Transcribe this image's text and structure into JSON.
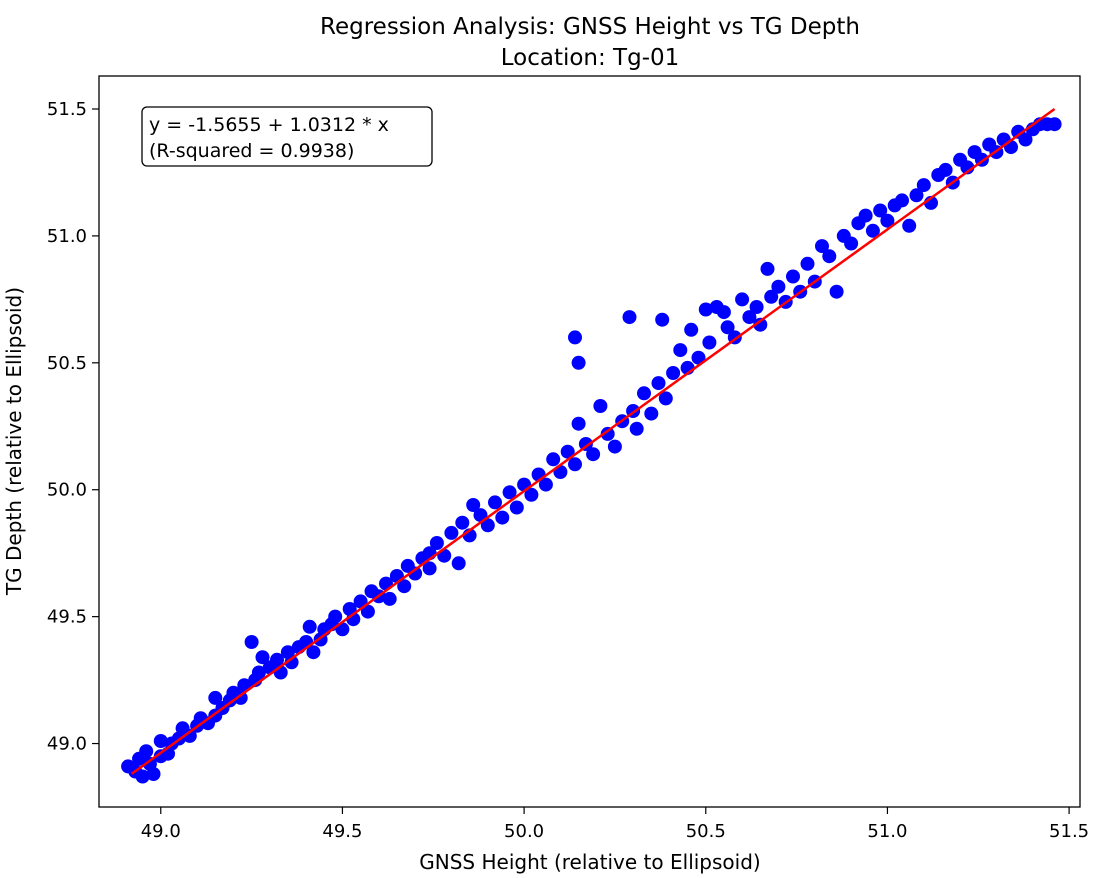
{
  "chart_data": {
    "type": "scatter",
    "title": "Regression Analysis: GNSS Height vs TG Depth",
    "subtitle": "Location: Tg-01",
    "xlabel": "GNSS Height (relative to Ellipsoid)",
    "ylabel": "TG Depth (relative to Ellipsoid)",
    "xlim": [
      48.83,
      51.53
    ],
    "ylim": [
      48.75,
      51.63
    ],
    "xticks": [
      49.0,
      49.5,
      50.0,
      50.5,
      51.0,
      51.5
    ],
    "yticks": [
      49.0,
      49.5,
      50.0,
      50.5,
      51.0,
      51.5
    ],
    "xtick_labels": [
      "49.0",
      "49.5",
      "50.0",
      "50.5",
      "51.0",
      "51.5"
    ],
    "ytick_labels": [
      "49.0",
      "49.5",
      "50.0",
      "50.5",
      "51.0",
      "51.5"
    ],
    "grid": false,
    "colors": {
      "points": "#0000ff",
      "fit_line": "#ff0000"
    },
    "annotation": {
      "line1": "y = -1.5655 + 1.0312 * x",
      "line2": "(R-squared = 0.9938)"
    },
    "fit_line": {
      "intercept": -1.5655,
      "slope": 1.0312,
      "x_start": 48.92,
      "x_end": 51.46
    },
    "series": [
      {
        "points": [
          [
            48.91,
            48.91
          ],
          [
            48.93,
            48.89
          ],
          [
            48.94,
            48.94
          ],
          [
            48.95,
            48.87
          ],
          [
            48.96,
            48.97
          ],
          [
            48.97,
            48.92
          ],
          [
            48.98,
            48.88
          ],
          [
            49.0,
            48.95
          ],
          [
            49.0,
            49.01
          ],
          [
            49.02,
            48.96
          ],
          [
            49.03,
            49.0
          ],
          [
            49.05,
            49.02
          ],
          [
            49.06,
            49.06
          ],
          [
            49.08,
            49.03
          ],
          [
            49.1,
            49.07
          ],
          [
            49.11,
            49.1
          ],
          [
            49.13,
            49.08
          ],
          [
            49.15,
            49.18
          ],
          [
            49.15,
            49.11
          ],
          [
            49.17,
            49.14
          ],
          [
            49.19,
            49.17
          ],
          [
            49.2,
            49.2
          ],
          [
            49.22,
            49.18
          ],
          [
            49.23,
            49.23
          ],
          [
            49.25,
            49.4
          ],
          [
            49.26,
            49.25
          ],
          [
            49.27,
            49.28
          ],
          [
            49.28,
            49.34
          ],
          [
            49.3,
            49.3
          ],
          [
            49.32,
            49.33
          ],
          [
            49.33,
            49.28
          ],
          [
            49.35,
            49.36
          ],
          [
            49.36,
            49.32
          ],
          [
            49.38,
            49.38
          ],
          [
            49.4,
            49.4
          ],
          [
            49.41,
            49.46
          ],
          [
            49.42,
            49.36
          ],
          [
            49.44,
            49.41
          ],
          [
            49.45,
            49.45
          ],
          [
            49.47,
            49.47
          ],
          [
            49.48,
            49.5
          ],
          [
            49.5,
            49.45
          ],
          [
            49.52,
            49.53
          ],
          [
            49.53,
            49.49
          ],
          [
            49.55,
            49.56
          ],
          [
            49.57,
            49.52
          ],
          [
            49.58,
            49.6
          ],
          [
            49.6,
            49.58
          ],
          [
            49.62,
            49.63
          ],
          [
            49.63,
            49.57
          ],
          [
            49.65,
            49.66
          ],
          [
            49.67,
            49.62
          ],
          [
            49.68,
            49.7
          ],
          [
            49.7,
            49.67
          ],
          [
            49.72,
            49.73
          ],
          [
            49.74,
            49.75
          ],
          [
            49.74,
            49.69
          ],
          [
            49.76,
            49.79
          ],
          [
            49.78,
            49.74
          ],
          [
            49.8,
            49.83
          ],
          [
            49.82,
            49.71
          ],
          [
            49.83,
            49.87
          ],
          [
            49.85,
            49.82
          ],
          [
            49.86,
            49.94
          ],
          [
            49.88,
            49.9
          ],
          [
            49.9,
            49.86
          ],
          [
            49.92,
            49.95
          ],
          [
            49.94,
            49.89
          ],
          [
            49.96,
            49.99
          ],
          [
            49.98,
            49.93
          ],
          [
            50.0,
            50.02
          ],
          [
            50.02,
            49.98
          ],
          [
            50.04,
            50.06
          ],
          [
            50.06,
            50.02
          ],
          [
            50.08,
            50.12
          ],
          [
            50.1,
            50.07
          ],
          [
            50.12,
            50.15
          ],
          [
            50.14,
            50.1
          ],
          [
            50.14,
            50.6
          ],
          [
            50.15,
            50.5
          ],
          [
            50.15,
            50.26
          ],
          [
            50.17,
            50.18
          ],
          [
            50.19,
            50.14
          ],
          [
            50.21,
            50.33
          ],
          [
            50.23,
            50.22
          ],
          [
            50.25,
            50.17
          ],
          [
            50.27,
            50.27
          ],
          [
            50.29,
            50.68
          ],
          [
            50.3,
            50.31
          ],
          [
            50.31,
            50.24
          ],
          [
            50.33,
            50.38
          ],
          [
            50.35,
            50.3
          ],
          [
            50.37,
            50.42
          ],
          [
            50.38,
            50.67
          ],
          [
            50.39,
            50.36
          ],
          [
            50.41,
            50.46
          ],
          [
            50.43,
            50.55
          ],
          [
            50.45,
            50.48
          ],
          [
            50.46,
            50.63
          ],
          [
            50.48,
            50.52
          ],
          [
            50.5,
            50.71
          ],
          [
            50.51,
            50.58
          ],
          [
            50.53,
            50.72
          ],
          [
            50.55,
            50.7
          ],
          [
            50.56,
            50.64
          ],
          [
            50.58,
            50.6
          ],
          [
            50.6,
            50.75
          ],
          [
            50.62,
            50.68
          ],
          [
            50.64,
            50.72
          ],
          [
            50.65,
            50.65
          ],
          [
            50.67,
            50.87
          ],
          [
            50.68,
            50.76
          ],
          [
            50.7,
            50.8
          ],
          [
            50.72,
            50.74
          ],
          [
            50.74,
            50.84
          ],
          [
            50.76,
            50.78
          ],
          [
            50.78,
            50.89
          ],
          [
            50.8,
            50.82
          ],
          [
            50.82,
            50.96
          ],
          [
            50.84,
            50.92
          ],
          [
            50.86,
            50.78
          ],
          [
            50.88,
            51.0
          ],
          [
            50.9,
            50.97
          ],
          [
            50.92,
            51.05
          ],
          [
            50.94,
            51.08
          ],
          [
            50.96,
            51.02
          ],
          [
            50.98,
            51.1
          ],
          [
            51.0,
            51.06
          ],
          [
            51.02,
            51.12
          ],
          [
            51.04,
            51.14
          ],
          [
            51.06,
            51.04
          ],
          [
            51.08,
            51.16
          ],
          [
            51.1,
            51.2
          ],
          [
            51.12,
            51.13
          ],
          [
            51.14,
            51.24
          ],
          [
            51.16,
            51.26
          ],
          [
            51.18,
            51.21
          ],
          [
            51.2,
            51.3
          ],
          [
            51.22,
            51.27
          ],
          [
            51.24,
            51.33
          ],
          [
            51.26,
            51.3
          ],
          [
            51.28,
            51.36
          ],
          [
            51.3,
            51.33
          ],
          [
            51.32,
            51.38
          ],
          [
            51.34,
            51.35
          ],
          [
            51.36,
            51.41
          ],
          [
            51.38,
            51.38
          ],
          [
            51.4,
            51.42
          ],
          [
            51.42,
            51.44
          ],
          [
            51.44,
            51.44
          ],
          [
            51.46,
            51.44
          ]
        ]
      }
    ]
  }
}
